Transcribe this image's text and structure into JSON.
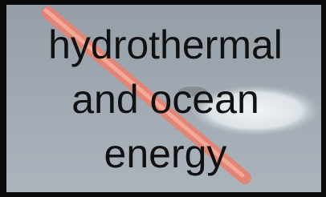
{
  "caption": {
    "lines": [
      "hydrothermal",
      "and ocean",
      "energy"
    ]
  }
}
